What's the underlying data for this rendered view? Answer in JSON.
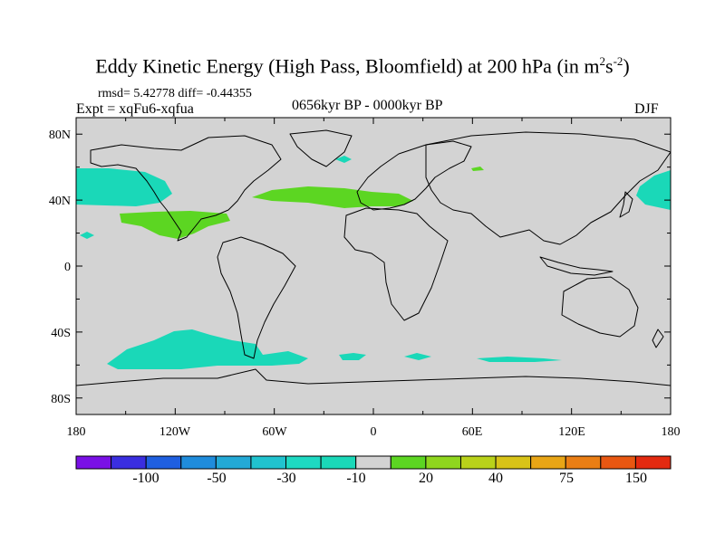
{
  "title": {
    "main": "Eddy Kinetic Energy (High Pass, Bloomfield) at 200 hPa (in m",
    "sup1": "2",
    "mid": "s",
    "sup2": "-2",
    "close": ")"
  },
  "stats": "rmsd= 5.42778 diff= -0.44355",
  "experiment": "Expt = xqFu6-xqfua",
  "period": "0656kyr BP - 0000kyr BP",
  "season": "DJF",
  "map": {
    "projection": "cylindrical equidistant",
    "lon_range": [
      -180,
      180
    ],
    "lat_range": [
      -90,
      90
    ],
    "y_ticks": [
      "80N",
      "40N",
      "0",
      "40S",
      "80S"
    ],
    "x_ticks": [
      "180",
      "120W",
      "60W",
      "0",
      "60E",
      "120E",
      "180"
    ],
    "background_color": "#d3d3d3",
    "positive_fill": "#5cd622",
    "negative_fill": "#1ad8b8"
  },
  "colorbar": {
    "labels": [
      "-100",
      "-50",
      "-30",
      "-10",
      "20",
      "40",
      "75",
      "150"
    ],
    "colors": [
      "#7a10e6",
      "#3a2ee0",
      "#1f5fe0",
      "#1f8cdc",
      "#23a9d6",
      "#20c3cf",
      "#1ed9c2",
      "#1ad8b8",
      "#d3d3d3",
      "#5cd622",
      "#8fd61e",
      "#b9d21a",
      "#d8c318",
      "#e8a516",
      "#ea7e14",
      "#e85712",
      "#e32a10"
    ]
  }
}
